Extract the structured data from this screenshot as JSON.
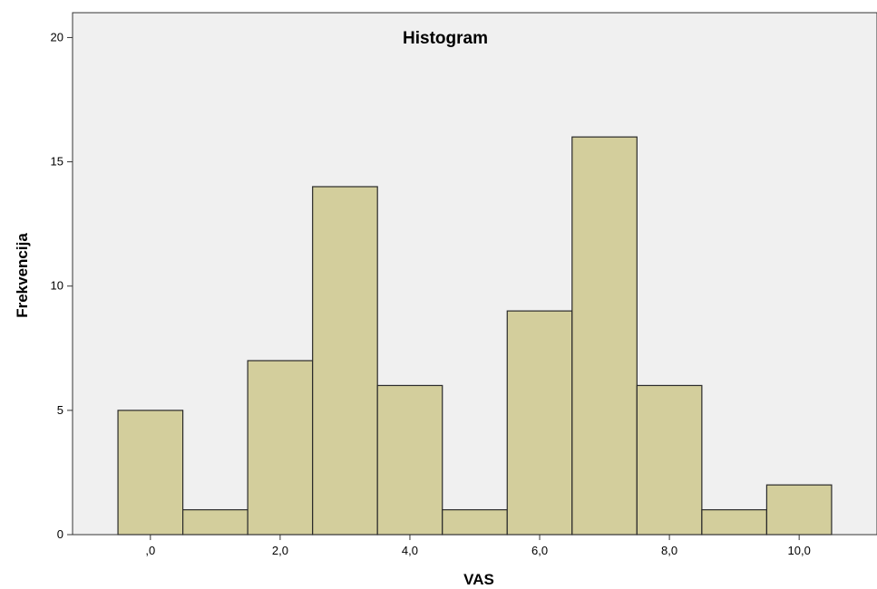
{
  "chart_data": {
    "type": "bar",
    "title": "Histogram",
    "xlabel": "VAS",
    "ylabel": "Frekvencija",
    "x_range": [
      -1.2,
      11.2
    ],
    "ylim": [
      0,
      21
    ],
    "y_ticks": [
      0,
      5,
      10,
      15,
      20
    ],
    "y_tick_labels": [
      "0",
      "5",
      "10",
      "15",
      "20"
    ],
    "x_ticks": [
      0,
      2,
      4,
      6,
      8,
      10
    ],
    "x_tick_labels": [
      ",0",
      "2,0",
      "4,0",
      "6,0",
      "8,0",
      "10,0"
    ],
    "bins": [
      0,
      1,
      2,
      3,
      4,
      5,
      6,
      7,
      8,
      9,
      10
    ],
    "bin_width": 1,
    "values": [
      5,
      1,
      7,
      14,
      6,
      1,
      9,
      16,
      6,
      1,
      2
    ],
    "grid": false,
    "colors": {
      "bar_fill": "#d3ce9c",
      "bar_stroke": "#2a2a2a",
      "plot_background": "#f0f0f0",
      "axis": "#333333"
    }
  }
}
